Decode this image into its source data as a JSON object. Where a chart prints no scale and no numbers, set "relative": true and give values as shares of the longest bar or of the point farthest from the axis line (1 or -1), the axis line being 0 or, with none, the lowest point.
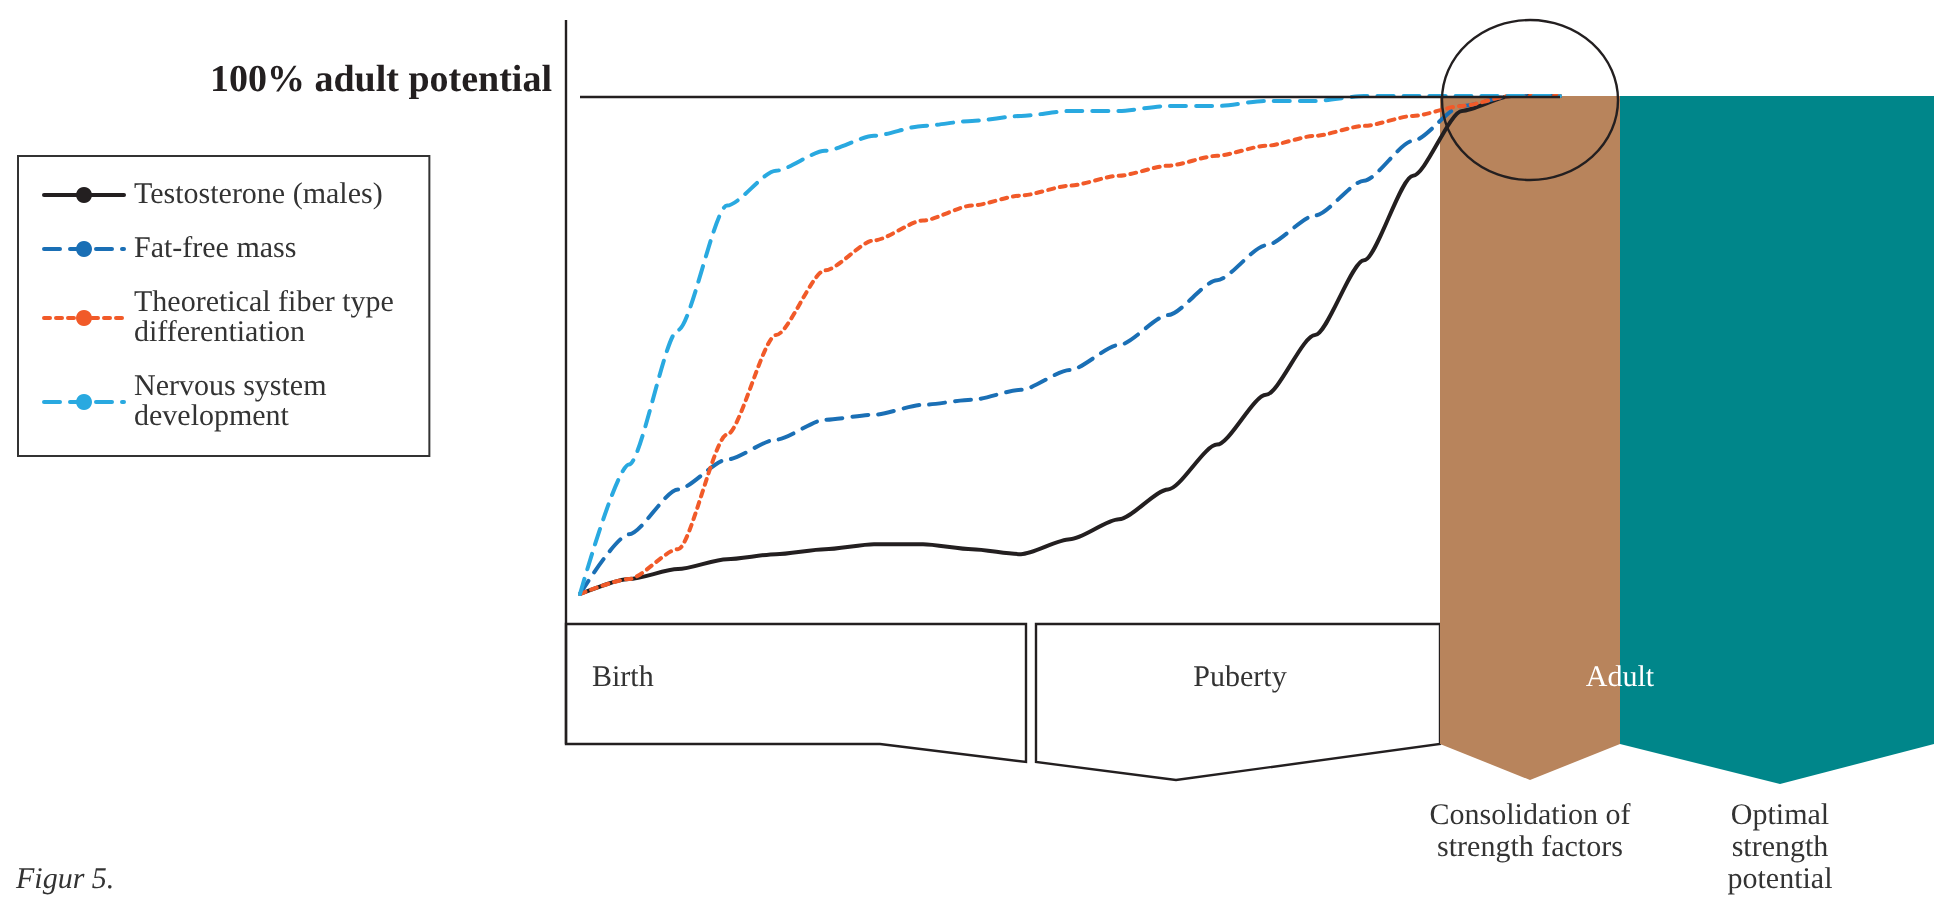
{
  "chart_data": {
    "type": "line",
    "relative": true,
    "categories": [
      null,
      null,
      null,
      null,
      null,
      null,
      null,
      null,
      null,
      null,
      null,
      null,
      null,
      null,
      null,
      null,
      null,
      null,
      null,
      null,
      null
    ],
    "series": [
      {
        "name": "Testosterone (males)",
        "color": "#231f20",
        "line_style": "solid",
        "values": [
          0,
          0.03,
          0.05,
          0.07,
          0.08,
          0.09,
          0.1,
          0.1,
          0.09,
          0.08,
          0.11,
          0.15,
          0.21,
          0.3,
          0.4,
          0.52,
          0.67,
          0.84,
          0.97,
          1,
          1
        ]
      },
      {
        "name": "Fat-free mass",
        "color": "#1a6fb5",
        "line_style": "dashed",
        "values": [
          0,
          0.12,
          0.21,
          0.27,
          0.31,
          0.35,
          0.36,
          0.38,
          0.39,
          0.41,
          0.45,
          0.5,
          0.56,
          0.63,
          0.7,
          0.76,
          0.83,
          0.91,
          0.98,
          1,
          1
        ]
      },
      {
        "name": "Theoretical fiber type differentiation",
        "color": "#f15a29",
        "line_style": "dotted",
        "values": [
          0,
          0.03,
          0.09,
          0.32,
          0.52,
          0.65,
          0.71,
          0.75,
          0.78,
          0.8,
          0.82,
          0.84,
          0.86,
          0.88,
          0.9,
          0.92,
          0.94,
          0.96,
          0.98,
          1,
          1
        ]
      },
      {
        "name": "Nervous system development",
        "color": "#29a9e0",
        "line_style": "dashed",
        "values": [
          0,
          0.26,
          0.53,
          0.78,
          0.85,
          0.89,
          0.92,
          0.94,
          0.95,
          0.96,
          0.97,
          0.97,
          0.98,
          0.98,
          0.99,
          0.99,
          1,
          1,
          1,
          1,
          1
        ]
      }
    ],
    "ref_lines": [
      {
        "axis": "y",
        "value": 1,
        "label": "100% adult potential",
        "color": "#231f20"
      }
    ],
    "legend": "left",
    "marker": "none",
    "annotations": [
      "Birth",
      "Puberty",
      "Adult",
      "Consolidation of strength factors",
      "Optimal strength potential",
      "Figur 5."
    ]
  }
}
